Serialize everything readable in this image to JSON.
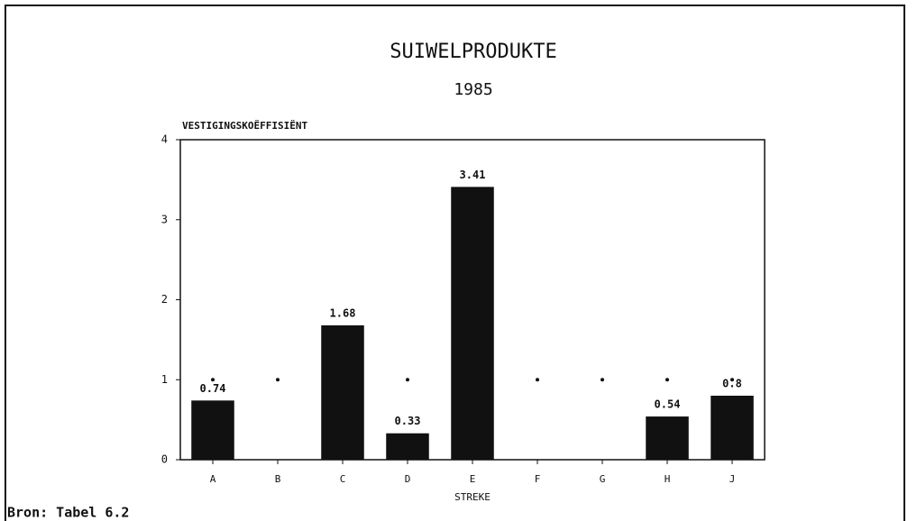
{
  "chart_data": {
    "type": "bar",
    "title": "SUIWELPRODUKTE",
    "subtitle": "1985",
    "y_label": "VESTIGINGSKOËFFISIËNT",
    "x_label": "STREKE",
    "source": "Bron: Tabel 6.2",
    "categories": [
      "A",
      "B",
      "C",
      "D",
      "E",
      "F",
      "G",
      "H",
      "J"
    ],
    "values": [
      0.74,
      0,
      1.68,
      0.33,
      3.41,
      0,
      0,
      0.54,
      0.8
    ],
    "value_labels": [
      "0.74",
      null,
      "1.68",
      "0.33",
      "3.41",
      null,
      null,
      "0.54",
      "0.8"
    ],
    "color": "#111111",
    "reference_line": 1,
    "ylim": [
      0,
      4
    ],
    "yticks": [
      0,
      1,
      2,
      3,
      4
    ],
    "grid": false
  }
}
